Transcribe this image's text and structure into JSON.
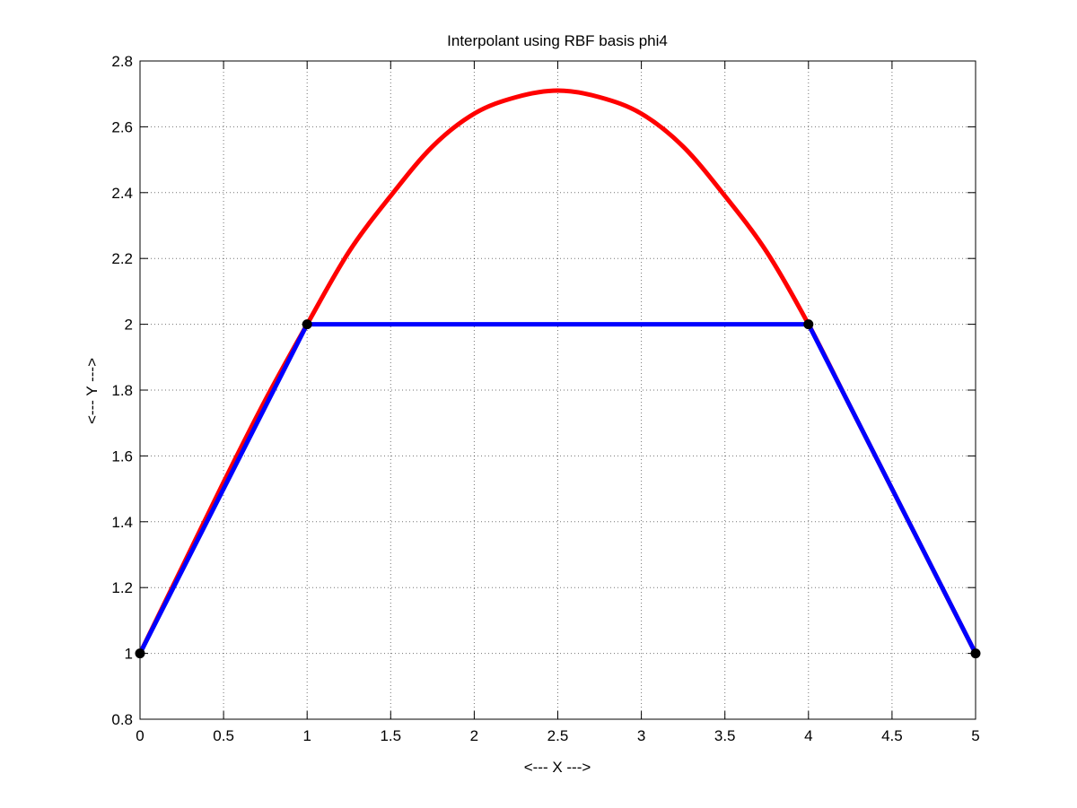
{
  "chart_data": {
    "type": "line",
    "title": "Interpolant using RBF basis phi4",
    "xlabel": "<--- X --->",
    "ylabel": "<--- Y --->",
    "xlim": [
      0,
      5
    ],
    "ylim": [
      0.8,
      2.8
    ],
    "grid": true,
    "x_ticks": [
      0,
      0.5,
      1,
      1.5,
      2,
      2.5,
      3,
      3.5,
      4,
      4.5,
      5
    ],
    "x_tick_labels": [
      "0",
      "0.5",
      "1",
      "1.5",
      "2",
      "2.5",
      "3",
      "3.5",
      "4",
      "4.5",
      "5"
    ],
    "y_ticks": [
      0.8,
      1.0,
      1.2,
      1.4,
      1.6,
      1.8,
      2.0,
      2.2,
      2.4,
      2.6,
      2.8
    ],
    "y_tick_labels": [
      "0.8",
      "1",
      "1.2",
      "1.4",
      "1.6",
      "1.8",
      "2",
      "2.2",
      "2.4",
      "2.6",
      "2.8"
    ],
    "series": [
      {
        "color": "#ff0000",
        "x": [
          0,
          0.25,
          0.5,
          0.75,
          1,
          1.25,
          1.5,
          1.75,
          2,
          2.25,
          2.5,
          2.75,
          3,
          3.25,
          3.5,
          3.75,
          4,
          4.25,
          4.5,
          4.75,
          5
        ],
        "y": [
          1.0,
          1.26,
          1.52,
          1.77,
          2.0,
          2.22,
          2.39,
          2.54,
          2.64,
          2.69,
          2.71,
          2.69,
          2.64,
          2.54,
          2.39,
          2.22,
          2.0,
          1.75,
          1.5,
          1.25,
          1.0
        ]
      },
      {
        "color": "#0000ff",
        "x": [
          0,
          1,
          4,
          5
        ],
        "y": [
          1.0,
          2.0,
          2.0,
          1.0
        ]
      },
      {
        "color": "#000000",
        "markers_only": true,
        "x": [
          0,
          1,
          4,
          5
        ],
        "y": [
          1.0,
          2.0,
          2.0,
          1.0
        ]
      }
    ]
  }
}
